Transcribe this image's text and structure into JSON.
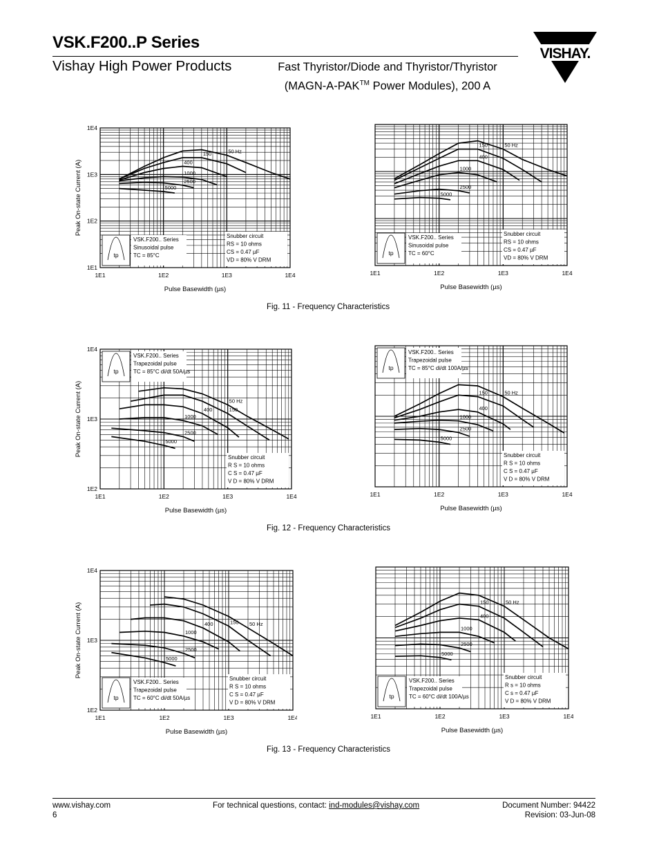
{
  "header": {
    "title": "VSK.F200..P Series",
    "brand": "Vishay High Power Products",
    "subtitle_line1": "Fast Thyristor/Diode and Thyristor/Thyristor",
    "subtitle_line2_pre": "(MAGN-A-PAK",
    "subtitle_tm": "TM",
    "subtitle_line2_post": " Power Modules), 200 A",
    "logo_text": "VISHAY."
  },
  "captions": {
    "fig11": "Fig. 11 - Frequency Characteristics",
    "fig12": "Fig. 12 - Frequency Characteristics",
    "fig13": "Fig. 13 - Frequency Characteristics"
  },
  "footer": {
    "website": "www.vishay.com",
    "page_number": "6",
    "contact_prefix": "For technical questions, contact: ",
    "contact_email": "ind-modules@vishay.com",
    "doc_number": "Document Number: 94422",
    "revision": "Revision: 03-Jun-08"
  },
  "chart_data": [
    {
      "id": "fig11-left",
      "type": "line",
      "xscale": "log",
      "yscale": "log",
      "xlim": [
        10,
        10000
      ],
      "ylim": [
        10,
        10000
      ],
      "xticks": [
        "1E1",
        "1E2",
        "1E3",
        "1E4"
      ],
      "yticks": [
        "1E1",
        "1E2",
        "1E3",
        "1E4"
      ],
      "xlabel": "Pulse Basewidth (µs)",
      "ylabel": "Peak On-state Current (A)",
      "info": [
        "VSK.F200.. Series",
        "Sinusoidal pulse",
        "TC = 85°C"
      ],
      "snubber": [
        "Snubber circuit",
        "RS = 10 ohms",
        "CS = 0.47 µF",
        "VD = 80% V DRM"
      ],
      "pulse_label": "tp",
      "series": [
        {
          "name": "50 Hz",
          "x": [
            20,
            50,
            100,
            200,
            400,
            1000,
            2000,
            5000,
            10000
          ],
          "y": [
            800,
            1500,
            2300,
            3200,
            3400,
            2600,
            1800,
            1100,
            800
          ]
        },
        {
          "name": "150",
          "x": [
            20,
            50,
            100,
            200,
            400,
            1000,
            2000
          ],
          "y": [
            800,
            1350,
            1800,
            2300,
            2300,
            1700,
            1100
          ]
        },
        {
          "name": "400",
          "x": [
            20,
            50,
            100,
            200,
            400,
            1000
          ],
          "y": [
            760,
            1100,
            1350,
            1500,
            1400,
            900
          ]
        },
        {
          "name": "1000",
          "x": [
            20,
            50,
            100,
            200,
            400,
            700
          ],
          "y": [
            730,
            850,
            900,
            880,
            780,
            600
          ]
        },
        {
          "name": "2500",
          "x": [
            20,
            50,
            100,
            200,
            300
          ],
          "y": [
            640,
            680,
            660,
            590,
            520
          ]
        },
        {
          "name": "5000",
          "x": [
            20,
            50,
            100,
            150
          ],
          "y": [
            500,
            460,
            430,
            400
          ]
        }
      ]
    },
    {
      "id": "fig11-right",
      "type": "line",
      "xscale": "log",
      "yscale": "log",
      "xlim": [
        10,
        10000
      ],
      "ylim": [
        10,
        10000
      ],
      "xticks": [
        "1E1",
        "1E2",
        "1E3",
        "1E4"
      ],
      "yticks": [],
      "xlabel": "Pulse Basewidth (µs)",
      "ylabel": "",
      "info": [
        "VSK.F200.. Series",
        "Sinusoidal pulse",
        "TC = 60°C"
      ],
      "snubber": [
        "Snubber circuit",
        "RS = 10 ohms",
        "CS = 0.47 µF",
        "VD = 80% V DRM"
      ],
      "pulse_label": "tp",
      "series": [
        {
          "name": "50 Hz",
          "x": [
            20,
            50,
            100,
            200,
            400,
            1000,
            2000,
            5000,
            10000
          ],
          "y": [
            700,
            1400,
            2400,
            4000,
            4500,
            3000,
            1800,
            1100,
            800
          ]
        },
        {
          "name": "150",
          "x": [
            20,
            50,
            100,
            200,
            400,
            1000,
            2000,
            4000
          ],
          "y": [
            650,
            1200,
            1900,
            3000,
            3000,
            1900,
            1100,
            600
          ]
        },
        {
          "name": "400",
          "x": [
            20,
            50,
            100,
            200,
            400,
            1000,
            1800
          ],
          "y": [
            550,
            900,
            1300,
            1700,
            1700,
            1100,
            650
          ]
        },
        {
          "name": "1000",
          "x": [
            20,
            50,
            100,
            200,
            400,
            800
          ],
          "y": [
            450,
            650,
            850,
            950,
            850,
            600
          ]
        },
        {
          "name": "2500",
          "x": [
            20,
            50,
            100,
            200,
            300
          ],
          "y": [
            330,
            390,
            420,
            390,
            350
          ]
        },
        {
          "name": "5000",
          "x": [
            20,
            50,
            100,
            150
          ],
          "y": [
            260,
            280,
            270,
            250
          ]
        }
      ]
    },
    {
      "id": "fig12-left",
      "type": "line",
      "xscale": "log",
      "yscale": "log",
      "xlim": [
        10,
        10000
      ],
      "ylim": [
        100,
        10000
      ],
      "xticks": [
        "1E1",
        "1E2",
        "1E3",
        "1E4"
      ],
      "yticks": [
        "1E2",
        "1E3",
        "1E4"
      ],
      "xlabel": "Pulse Basewidth (µs)",
      "ylabel": "Peak On-state Current (A)",
      "info": [
        "VSK.F200.. Series",
        "Trapezoidal pulse",
        "TC = 85°C di/dt 50A/µs"
      ],
      "snubber": [
        "Snubber circuit",
        "R S = 10 ohms",
        "C S = 0.47 µF",
        "V D = 80% V DRM"
      ],
      "pulse_label": "tp",
      "series": [
        {
          "name": "50 Hz",
          "x": [
            40,
            100,
            200,
            400,
            1000,
            2000,
            5000,
            9000
          ],
          "y": [
            2500,
            2800,
            2700,
            2300,
            1600,
            1100,
            700,
            520
          ]
        },
        {
          "name": "150",
          "x": [
            30,
            100,
            200,
            400,
            1000,
            2000,
            4500
          ],
          "y": [
            1800,
            2200,
            2200,
            1800,
            1200,
            800,
            500
          ]
        },
        {
          "name": "400",
          "x": [
            20,
            50,
            100,
            200,
            400,
            1000,
            1500
          ],
          "y": [
            1400,
            1600,
            1600,
            1500,
            1200,
            750,
            550
          ]
        },
        {
          "name": "1000",
          "x": [
            20,
            50,
            100,
            200,
            400,
            700
          ],
          "y": [
            1000,
            1050,
            1050,
            950,
            800,
            600
          ]
        },
        {
          "name": "2500",
          "x": [
            15,
            50,
            100,
            200,
            300
          ],
          "y": [
            740,
            680,
            640,
            560,
            480
          ]
        },
        {
          "name": "5000",
          "x": [
            15,
            50,
            100,
            150
          ],
          "y": [
            560,
            480,
            420,
            380
          ]
        }
      ]
    },
    {
      "id": "fig12-right",
      "type": "line",
      "xscale": "log",
      "yscale": "log",
      "xlim": [
        10,
        10000
      ],
      "ylim": [
        100,
        10000
      ],
      "xticks": [
        "1E1",
        "1E2",
        "1E3",
        "1E4"
      ],
      "yticks": [],
      "xlabel": "Pulse Basewidth (µs)",
      "ylabel": "",
      "info": [
        "VSK.F200.. Series",
        "Trapezoidal pulse",
        "TC = 85°C di/dt 100A/µs"
      ],
      "snubber": [
        "Snubber circuit",
        "R S = 10 ohms",
        "C S = 0.47 µF",
        "V D = 80% V DRM"
      ],
      "pulse_label": "tp",
      "series": [
        {
          "name": "50 Hz",
          "x": [
            20,
            50,
            100,
            200,
            400,
            1000,
            2000,
            5000,
            9000
          ],
          "y": [
            1000,
            1500,
            2100,
            2800,
            2700,
            1900,
            1300,
            800,
            580
          ]
        },
        {
          "name": "150",
          "x": [
            20,
            50,
            100,
            200,
            400,
            1000,
            2000,
            3000
          ],
          "y": [
            950,
            1250,
            1600,
            2000,
            1900,
            1400,
            900,
            700
          ]
        },
        {
          "name": "400",
          "x": [
            20,
            50,
            100,
            200,
            400,
            1000,
            1300
          ],
          "y": [
            880,
            1000,
            1150,
            1250,
            1150,
            780,
            650
          ]
        },
        {
          "name": "1000",
          "x": [
            20,
            50,
            100,
            200,
            400,
            700
          ],
          "y": [
            800,
            850,
            880,
            860,
            760,
            620
          ]
        },
        {
          "name": "2500",
          "x": [
            20,
            50,
            100,
            200,
            300
          ],
          "y": [
            650,
            670,
            650,
            590,
            520
          ]
        },
        {
          "name": "5000",
          "x": [
            20,
            50,
            100,
            150
          ],
          "y": [
            470,
            460,
            430,
            400
          ]
        }
      ]
    },
    {
      "id": "fig13-left",
      "type": "line",
      "xscale": "log",
      "yscale": "log",
      "xlim": [
        10,
        10000
      ],
      "ylim": [
        100,
        10000
      ],
      "xticks": [
        "1E1",
        "1E2",
        "1E3",
        "1E4"
      ],
      "yticks": [
        "1E2",
        "1E3",
        "1E4"
      ],
      "xlabel": "Pulse Basewidth (µs)",
      "ylabel": "Peak On-state Current (A)",
      "info": [
        "VSK.F200.. Series",
        "Trapezoidal pulse",
        "TC = 60°C di/dt 50A/µs"
      ],
      "snubber": [
        "Snubber circuit",
        "R S = 10 ohms",
        "C S = 0.47 µF",
        "V D = 80% V DRM"
      ],
      "pulse_label": "tp",
      "series": [
        {
          "name": "50 Hz",
          "x": [
            100,
            200,
            400,
            1000,
            2000,
            5000,
            10000
          ],
          "y": [
            4200,
            3900,
            3200,
            2200,
            1500,
            900,
            600
          ]
        },
        {
          "name": "150",
          "x": [
            60,
            100,
            200,
            400,
            1000,
            2000,
            4500
          ],
          "y": [
            3200,
            3300,
            3000,
            2400,
            1600,
            1000,
            600
          ]
        },
        {
          "name": "400",
          "x": [
            30,
            50,
            100,
            200,
            400,
            1000,
            1500
          ],
          "y": [
            2000,
            2100,
            2100,
            1900,
            1500,
            950,
            700
          ]
        },
        {
          "name": "1000",
          "x": [
            20,
            50,
            100,
            200,
            400,
            700
          ],
          "y": [
            1300,
            1350,
            1300,
            1150,
            950,
            750
          ]
        },
        {
          "name": "2500",
          "x": [
            15,
            50,
            100,
            200,
            300
          ],
          "y": [
            900,
            850,
            780,
            650,
            560
          ]
        },
        {
          "name": "5000",
          "x": [
            15,
            50,
            100,
            150
          ],
          "y": [
            670,
            560,
            480,
            430
          ]
        }
      ]
    },
    {
      "id": "fig13-right",
      "type": "line",
      "xscale": "log",
      "yscale": "log",
      "xlim": [
        10,
        10000
      ],
      "ylim": [
        100,
        10000
      ],
      "xticks": [
        "1E1",
        "1E2",
        "1E3",
        "1E4"
      ],
      "yticks": [],
      "xlabel": "Pulse Basewidth (µs)",
      "ylabel": "",
      "info": [
        "VSK.F200.. Series",
        "Trapezoidal pulse",
        "TC = 60°C di/dt 100A/µs"
      ],
      "snubber": [
        "Snubber circuit",
        "R s = 10 ohms",
        "C s = 0.47 µF",
        "V D = 80% V DRM"
      ],
      "pulse_label": "tp",
      "series": [
        {
          "name": "50 Hz",
          "x": [
            20,
            50,
            100,
            200,
            400,
            1000,
            2000,
            5000,
            10000
          ],
          "y": [
            1500,
            2300,
            3300,
            4300,
            4000,
            2800,
            1800,
            1000,
            700
          ]
        },
        {
          "name": "150",
          "x": [
            20,
            50,
            100,
            200,
            400,
            1000,
            2000,
            4000
          ],
          "y": [
            1400,
            1900,
            2500,
            3000,
            2800,
            1900,
            1200,
            750
          ]
        },
        {
          "name": "400",
          "x": [
            20,
            50,
            100,
            200,
            400,
            1000,
            1500
          ],
          "y": [
            1250,
            1500,
            1750,
            1900,
            1800,
            1200,
            900
          ]
        },
        {
          "name": "1000",
          "x": [
            20,
            50,
            100,
            200,
            400,
            700
          ],
          "y": [
            1050,
            1150,
            1200,
            1200,
            1050,
            850
          ]
        },
        {
          "name": "2500",
          "x": [
            20,
            50,
            100,
            200,
            300
          ],
          "y": [
            780,
            820,
            800,
            720,
            640
          ]
        },
        {
          "name": "5000",
          "x": [
            20,
            50,
            100,
            150
          ],
          "y": [
            550,
            560,
            530,
            490
          ]
        }
      ]
    }
  ]
}
